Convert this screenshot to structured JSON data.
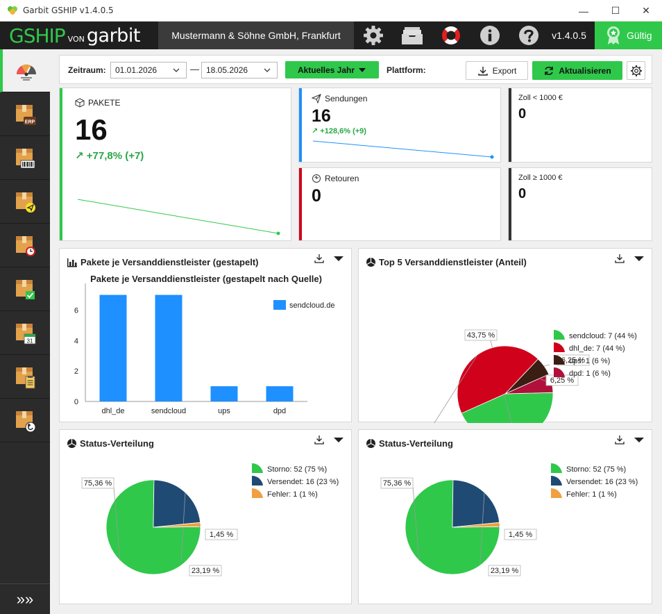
{
  "window": {
    "title": "Garbit GSHIP v1.4.0.5",
    "minimize": "—",
    "maximize": "☐",
    "close": "✕"
  },
  "header": {
    "logo_gship": "GSHIP",
    "logo_von": "VON",
    "logo_garbit": "garbit",
    "company": "Mustermann & Söhne GmbH, Frankfurt",
    "icons": [
      "gear-icon",
      "archive-icon",
      "lifebuoy-icon",
      "info-icon",
      "help-icon"
    ],
    "version": "v1.4.0.5",
    "license_label": "Gültig"
  },
  "sidebar": {
    "items": [
      "dashboard-icon",
      "erp-package-icon",
      "barcode-package-icon",
      "send-package-icon",
      "clock-package-icon",
      "check-package-icon",
      "calendar-package-icon",
      "clipboard-package-icon",
      "return-package-icon"
    ],
    "calendar_day": "31",
    "erp_text": "ERP",
    "expand": "»»"
  },
  "toolbar": {
    "period_label": "Zeitraum:",
    "date_from": "01.01.2026",
    "date_to": "18.05.2026",
    "separator": "—",
    "preset_label": "Aktuelles Jahr",
    "platform_label": "Plattform:",
    "export_label": "Export",
    "refresh_label": "Aktualisieren"
  },
  "kpis": {
    "pakete": {
      "title": "PAKETE",
      "value": "16",
      "trend": "+77,8% (+7)",
      "trend_arrow": "↗"
    },
    "sendungen": {
      "title": "Sendungen",
      "value": "16",
      "trend": "+128,6% (+9)",
      "trend_arrow": "↗"
    },
    "retouren": {
      "title": "Retouren",
      "value": "0"
    },
    "zoll_low": {
      "title": "Zoll < 1000 €",
      "value": "0"
    },
    "zoll_high": {
      "title": "Zoll ≥ 1000 €",
      "value": "0"
    }
  },
  "colors": {
    "green": "#2fc84b",
    "blue": "#1e90ff",
    "red": "#d0021b",
    "dark": "#3a1e14",
    "maroon": "#b0103a",
    "navy": "#1f4a73",
    "orange": "#f0a040"
  },
  "chart_data": [
    {
      "type": "bar",
      "card_title": "Pakete je Versanddienstleister (gestapelt)",
      "title": "Pakete je Versanddienstleister (gestapelt nach Quelle)",
      "categories": [
        "dhl_de",
        "sendcloud",
        "ups",
        "dpd"
      ],
      "series": [
        {
          "name": "sendcloud.de",
          "values": [
            7,
            7,
            1,
            1
          ]
        }
      ],
      "yticks": [
        "0",
        "2",
        "4",
        "6"
      ],
      "ylim": [
        0,
        7.3
      ],
      "xlabel": "",
      "ylabel": "",
      "legend_position": "right"
    },
    {
      "type": "pie",
      "title": "Top 5 Versanddienstleister (Anteil)",
      "slices": [
        {
          "name": "sendcloud",
          "legend": "sendcloud: 7 (44 %)",
          "value": 43.75,
          "label": "43,75 %",
          "color": "#2fc84b"
        },
        {
          "name": "dhl_de",
          "legend": "dhl_de: 7 (44 %)",
          "value": 43.75,
          "label": "43,75 %",
          "color": "#d0021b"
        },
        {
          "name": "ups",
          "legend": "ups: 1 (6 %)",
          "value": 6.25,
          "label": "6,25 %",
          "color": "#3a1e14"
        },
        {
          "name": "dpd",
          "legend": "dpd: 1 (6 %)",
          "value": 6.25,
          "label": "6,25 %",
          "color": "#b0103a"
        }
      ],
      "legend_position": "right"
    },
    {
      "type": "pie",
      "title": "Status-Verteilung",
      "slices": [
        {
          "name": "Storno",
          "legend": "Storno: 52 (75 %)",
          "value": 75.36,
          "label": "75,36 %",
          "color": "#2fc84b"
        },
        {
          "name": "Versendet",
          "legend": "Versendet: 16 (23 %)",
          "value": 23.19,
          "label": "23,19 %",
          "color": "#1f4a73"
        },
        {
          "name": "Fehler",
          "legend": "Fehler: 1 (1 %)",
          "value": 1.45,
          "label": "1,45 %",
          "color": "#f0a040"
        }
      ],
      "legend_position": "right"
    },
    {
      "type": "pie",
      "title": "Status-Verteilung",
      "slices": [
        {
          "name": "Storno",
          "legend": "Storno: 52 (75 %)",
          "value": 75.36,
          "label": "75,36 %",
          "color": "#2fc84b"
        },
        {
          "name": "Versendet",
          "legend": "Versendet: 16 (23 %)",
          "value": 23.19,
          "label": "23,19 %",
          "color": "#1f4a73"
        },
        {
          "name": "Fehler",
          "legend": "Fehler: 1 (1 %)",
          "value": 1.45,
          "label": "1,45 %",
          "color": "#f0a040"
        }
      ],
      "legend_position": "right"
    }
  ]
}
